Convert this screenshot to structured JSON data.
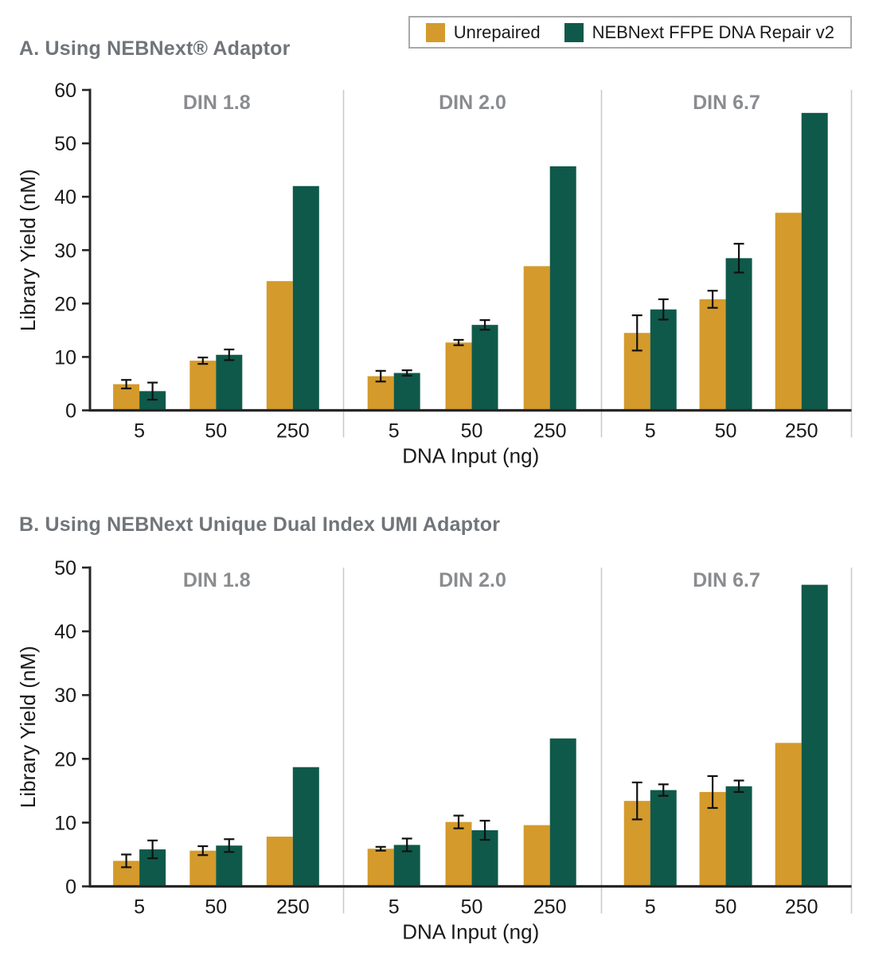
{
  "colors": {
    "unrepaired": "#D49A2B",
    "repaired": "#0F594A",
    "axis": "#262626",
    "divider": "#C9CBCC",
    "facet_label": "#8A8C8F",
    "title": "#717579",
    "legend_border": "#A7A9AC",
    "tick_text": "#1A1A1A"
  },
  "legend": {
    "items": [
      {
        "label": "Unrepaired",
        "color": "#D49A2B"
      },
      {
        "label": "NEBNext FFPE DNA Repair v2",
        "color": "#0F594A"
      }
    ]
  },
  "chart_data": [
    {
      "type": "bar",
      "title": "A. Using NEBNext® Adaptor",
      "facets": [
        "DIN 1.8",
        "DIN 2.0",
        "DIN 6.7"
      ],
      "categories": [
        "5",
        "50",
        "250"
      ],
      "xlabel": "DNA Input (ng)",
      "ylabel": "Library Yield (nM)",
      "ylim": [
        0,
        60
      ],
      "yticks": [
        0,
        10,
        20,
        30,
        40,
        50,
        60
      ],
      "grid": false,
      "legend_position": "top-right",
      "error_bars": true,
      "series": [
        {
          "name": "Unrepaired",
          "color": "#D49A2B",
          "facet_values": [
            [
              4.9,
              9.3,
              24.2
            ],
            [
              6.4,
              12.7,
              27.0
            ],
            [
              14.5,
              20.8,
              37.0
            ]
          ],
          "facet_errors": [
            [
              0.8,
              0.6,
              0
            ],
            [
              1.0,
              0.5,
              0
            ],
            [
              3.3,
              1.6,
              0
            ]
          ]
        },
        {
          "name": "NEBNext FFPE DNA Repair v2",
          "color": "#0F594A",
          "facet_values": [
            [
              3.6,
              10.4,
              42.0
            ],
            [
              7.0,
              16.0,
              45.7
            ],
            [
              18.9,
              28.5,
              55.7
            ]
          ],
          "facet_errors": [
            [
              1.6,
              1.0,
              0
            ],
            [
              0.5,
              0.9,
              0
            ],
            [
              1.9,
              2.7,
              0
            ]
          ]
        }
      ]
    },
    {
      "type": "bar",
      "title": "B. Using NEBNext Unique Dual Index UMI Adaptor",
      "facets": [
        "DIN 1.8",
        "DIN 2.0",
        "DIN 6.7"
      ],
      "categories": [
        "5",
        "50",
        "250"
      ],
      "xlabel": "DNA Input (ng)",
      "ylabel": "Library Yield (nM)",
      "ylim": [
        0,
        50
      ],
      "yticks": [
        0,
        10,
        20,
        30,
        40,
        50
      ],
      "grid": false,
      "legend_position": "none",
      "error_bars": true,
      "series": [
        {
          "name": "Unrepaired",
          "color": "#D49A2B",
          "facet_values": [
            [
              4.0,
              5.6,
              7.8
            ],
            [
              5.9,
              10.1,
              9.6
            ],
            [
              13.4,
              14.8,
              22.5
            ]
          ],
          "facet_errors": [
            [
              1.0,
              0.7,
              0
            ],
            [
              0.3,
              1.0,
              0
            ],
            [
              2.9,
              2.5,
              0
            ]
          ]
        },
        {
          "name": "NEBNext FFPE DNA Repair v2",
          "color": "#0F594A",
          "facet_values": [
            [
              5.8,
              6.4,
              18.7
            ],
            [
              6.5,
              8.8,
              23.2
            ],
            [
              15.1,
              15.7,
              47.3
            ]
          ],
          "facet_errors": [
            [
              1.4,
              1.0,
              0
            ],
            [
              1.0,
              1.5,
              0
            ],
            [
              0.9,
              0.9,
              0
            ]
          ]
        }
      ]
    }
  ]
}
